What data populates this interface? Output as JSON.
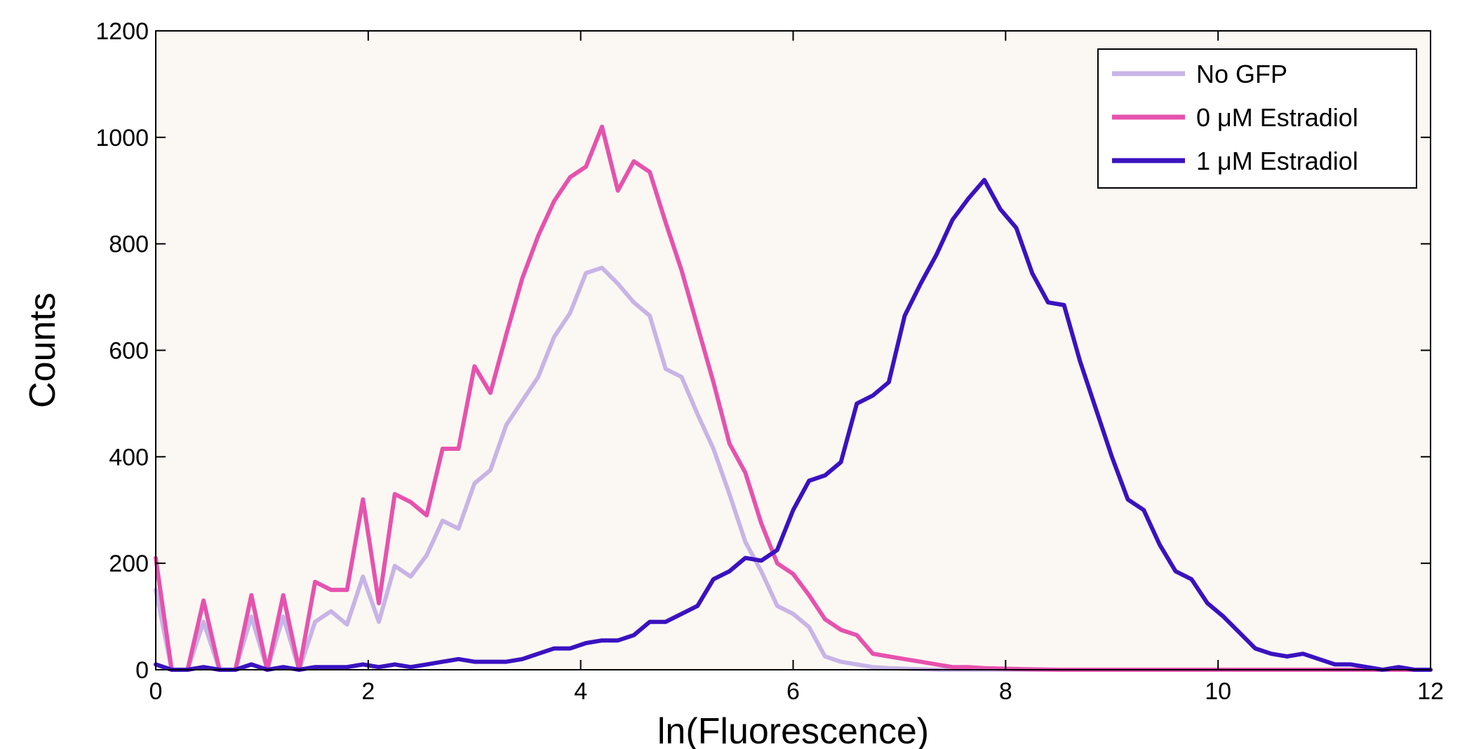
{
  "chart_data": {
    "type": "line",
    "title": "",
    "xlabel": "ln(Fluorescence)",
    "ylabel": "Counts",
    "xlim": [
      0,
      12
    ],
    "ylim": [
      0,
      1200
    ],
    "xticks": [
      0,
      2,
      4,
      6,
      8,
      10,
      12
    ],
    "yticks": [
      0,
      200,
      400,
      600,
      800,
      1000,
      1200
    ],
    "grid": false,
    "legend_position": "top-right",
    "background": "#fbf8f3",
    "series": [
      {
        "name": "No GFP",
        "color": "#c8b4e6",
        "points": [
          [
            0,
            150
          ],
          [
            0.15,
            0
          ],
          [
            0.3,
            0
          ],
          [
            0.45,
            90
          ],
          [
            0.6,
            0
          ],
          [
            0.75,
            0
          ],
          [
            0.9,
            100
          ],
          [
            1.05,
            0
          ],
          [
            1.2,
            100
          ],
          [
            1.35,
            0
          ],
          [
            1.5,
            90
          ],
          [
            1.65,
            110
          ],
          [
            1.8,
            85
          ],
          [
            1.95,
            175
          ],
          [
            2.1,
            90
          ],
          [
            2.25,
            195
          ],
          [
            2.4,
            175
          ],
          [
            2.55,
            215
          ],
          [
            2.7,
            280
          ],
          [
            2.85,
            265
          ],
          [
            3.0,
            350
          ],
          [
            3.15,
            375
          ],
          [
            3.3,
            460
          ],
          [
            3.45,
            505
          ],
          [
            3.6,
            550
          ],
          [
            3.75,
            625
          ],
          [
            3.9,
            670
          ],
          [
            4.05,
            745
          ],
          [
            4.2,
            755
          ],
          [
            4.35,
            725
          ],
          [
            4.5,
            690
          ],
          [
            4.65,
            665
          ],
          [
            4.8,
            565
          ],
          [
            4.95,
            550
          ],
          [
            5.1,
            480
          ],
          [
            5.25,
            415
          ],
          [
            5.4,
            330
          ],
          [
            5.55,
            240
          ],
          [
            5.7,
            185
          ],
          [
            5.85,
            120
          ],
          [
            6.0,
            105
          ],
          [
            6.15,
            80
          ],
          [
            6.3,
            25
          ],
          [
            6.45,
            15
          ],
          [
            6.6,
            10
          ],
          [
            6.75,
            5
          ],
          [
            6.9,
            3
          ],
          [
            7.05,
            2
          ],
          [
            7.2,
            1
          ],
          [
            7.35,
            0
          ],
          [
            7.5,
            0
          ],
          [
            8.0,
            0
          ],
          [
            9.0,
            0
          ],
          [
            10.0,
            0
          ],
          [
            11.0,
            0
          ],
          [
            12.0,
            0
          ]
        ]
      },
      {
        "name": "0 μM Estradiol",
        "color": "#e652ae",
        "points": [
          [
            0,
            210
          ],
          [
            0.15,
            0
          ],
          [
            0.3,
            0
          ],
          [
            0.45,
            130
          ],
          [
            0.6,
            0
          ],
          [
            0.75,
            0
          ],
          [
            0.9,
            140
          ],
          [
            1.05,
            0
          ],
          [
            1.2,
            140
          ],
          [
            1.35,
            0
          ],
          [
            1.5,
            165
          ],
          [
            1.65,
            150
          ],
          [
            1.8,
            150
          ],
          [
            1.95,
            320
          ],
          [
            2.1,
            125
          ],
          [
            2.25,
            330
          ],
          [
            2.4,
            315
          ],
          [
            2.55,
            290
          ],
          [
            2.7,
            415
          ],
          [
            2.85,
            415
          ],
          [
            3.0,
            570
          ],
          [
            3.15,
            520
          ],
          [
            3.3,
            630
          ],
          [
            3.45,
            735
          ],
          [
            3.6,
            815
          ],
          [
            3.75,
            880
          ],
          [
            3.9,
            925
          ],
          [
            4.05,
            945
          ],
          [
            4.2,
            1020
          ],
          [
            4.35,
            900
          ],
          [
            4.5,
            955
          ],
          [
            4.65,
            935
          ],
          [
            4.8,
            840
          ],
          [
            4.95,
            750
          ],
          [
            5.1,
            645
          ],
          [
            5.25,
            540
          ],
          [
            5.4,
            425
          ],
          [
            5.55,
            370
          ],
          [
            5.7,
            275
          ],
          [
            5.85,
            200
          ],
          [
            6.0,
            180
          ],
          [
            6.15,
            140
          ],
          [
            6.3,
            95
          ],
          [
            6.45,
            75
          ],
          [
            6.6,
            65
          ],
          [
            6.75,
            30
          ],
          [
            6.9,
            25
          ],
          [
            7.05,
            20
          ],
          [
            7.2,
            15
          ],
          [
            7.35,
            10
          ],
          [
            7.5,
            5
          ],
          [
            7.65,
            5
          ],
          [
            7.8,
            3
          ],
          [
            8.0,
            2
          ],
          [
            8.2,
            1
          ],
          [
            8.5,
            0
          ],
          [
            9.0,
            0
          ],
          [
            10.0,
            0
          ],
          [
            11.0,
            0
          ],
          [
            12.0,
            0
          ]
        ]
      },
      {
        "name": "1 μM Estradiol",
        "color": "#3a12c0",
        "points": [
          [
            0,
            10
          ],
          [
            0.15,
            0
          ],
          [
            0.3,
            0
          ],
          [
            0.45,
            5
          ],
          [
            0.6,
            0
          ],
          [
            0.75,
            0
          ],
          [
            0.9,
            10
          ],
          [
            1.05,
            0
          ],
          [
            1.2,
            5
          ],
          [
            1.35,
            0
          ],
          [
            1.5,
            5
          ],
          [
            1.65,
            5
          ],
          [
            1.8,
            5
          ],
          [
            1.95,
            10
          ],
          [
            2.1,
            5
          ],
          [
            2.25,
            10
          ],
          [
            2.4,
            5
          ],
          [
            2.55,
            10
          ],
          [
            2.7,
            15
          ],
          [
            2.85,
            20
          ],
          [
            3.0,
            15
          ],
          [
            3.15,
            15
          ],
          [
            3.3,
            15
          ],
          [
            3.45,
            20
          ],
          [
            3.6,
            30
          ],
          [
            3.75,
            40
          ],
          [
            3.9,
            40
          ],
          [
            4.05,
            50
          ],
          [
            4.2,
            55
          ],
          [
            4.35,
            55
          ],
          [
            4.5,
            65
          ],
          [
            4.65,
            90
          ],
          [
            4.8,
            90
          ],
          [
            4.95,
            105
          ],
          [
            5.1,
            120
          ],
          [
            5.25,
            170
          ],
          [
            5.4,
            185
          ],
          [
            5.55,
            210
          ],
          [
            5.7,
            205
          ],
          [
            5.85,
            225
          ],
          [
            6.0,
            300
          ],
          [
            6.15,
            355
          ],
          [
            6.3,
            365
          ],
          [
            6.45,
            390
          ],
          [
            6.6,
            500
          ],
          [
            6.75,
            515
          ],
          [
            6.9,
            540
          ],
          [
            7.05,
            665
          ],
          [
            7.2,
            725
          ],
          [
            7.35,
            780
          ],
          [
            7.5,
            845
          ],
          [
            7.65,
            885
          ],
          [
            7.8,
            920
          ],
          [
            7.95,
            865
          ],
          [
            8.1,
            830
          ],
          [
            8.25,
            745
          ],
          [
            8.4,
            690
          ],
          [
            8.55,
            685
          ],
          [
            8.7,
            580
          ],
          [
            8.85,
            490
          ],
          [
            9.0,
            400
          ],
          [
            9.15,
            320
          ],
          [
            9.3,
            300
          ],
          [
            9.45,
            235
          ],
          [
            9.6,
            185
          ],
          [
            9.75,
            170
          ],
          [
            9.9,
            125
          ],
          [
            10.05,
            100
          ],
          [
            10.2,
            70
          ],
          [
            10.35,
            40
          ],
          [
            10.5,
            30
          ],
          [
            10.65,
            25
          ],
          [
            10.8,
            30
          ],
          [
            10.95,
            20
          ],
          [
            11.1,
            10
          ],
          [
            11.25,
            10
          ],
          [
            11.4,
            5
          ],
          [
            11.55,
            0
          ],
          [
            11.7,
            5
          ],
          [
            11.85,
            0
          ],
          [
            12.0,
            0
          ]
        ]
      }
    ]
  }
}
